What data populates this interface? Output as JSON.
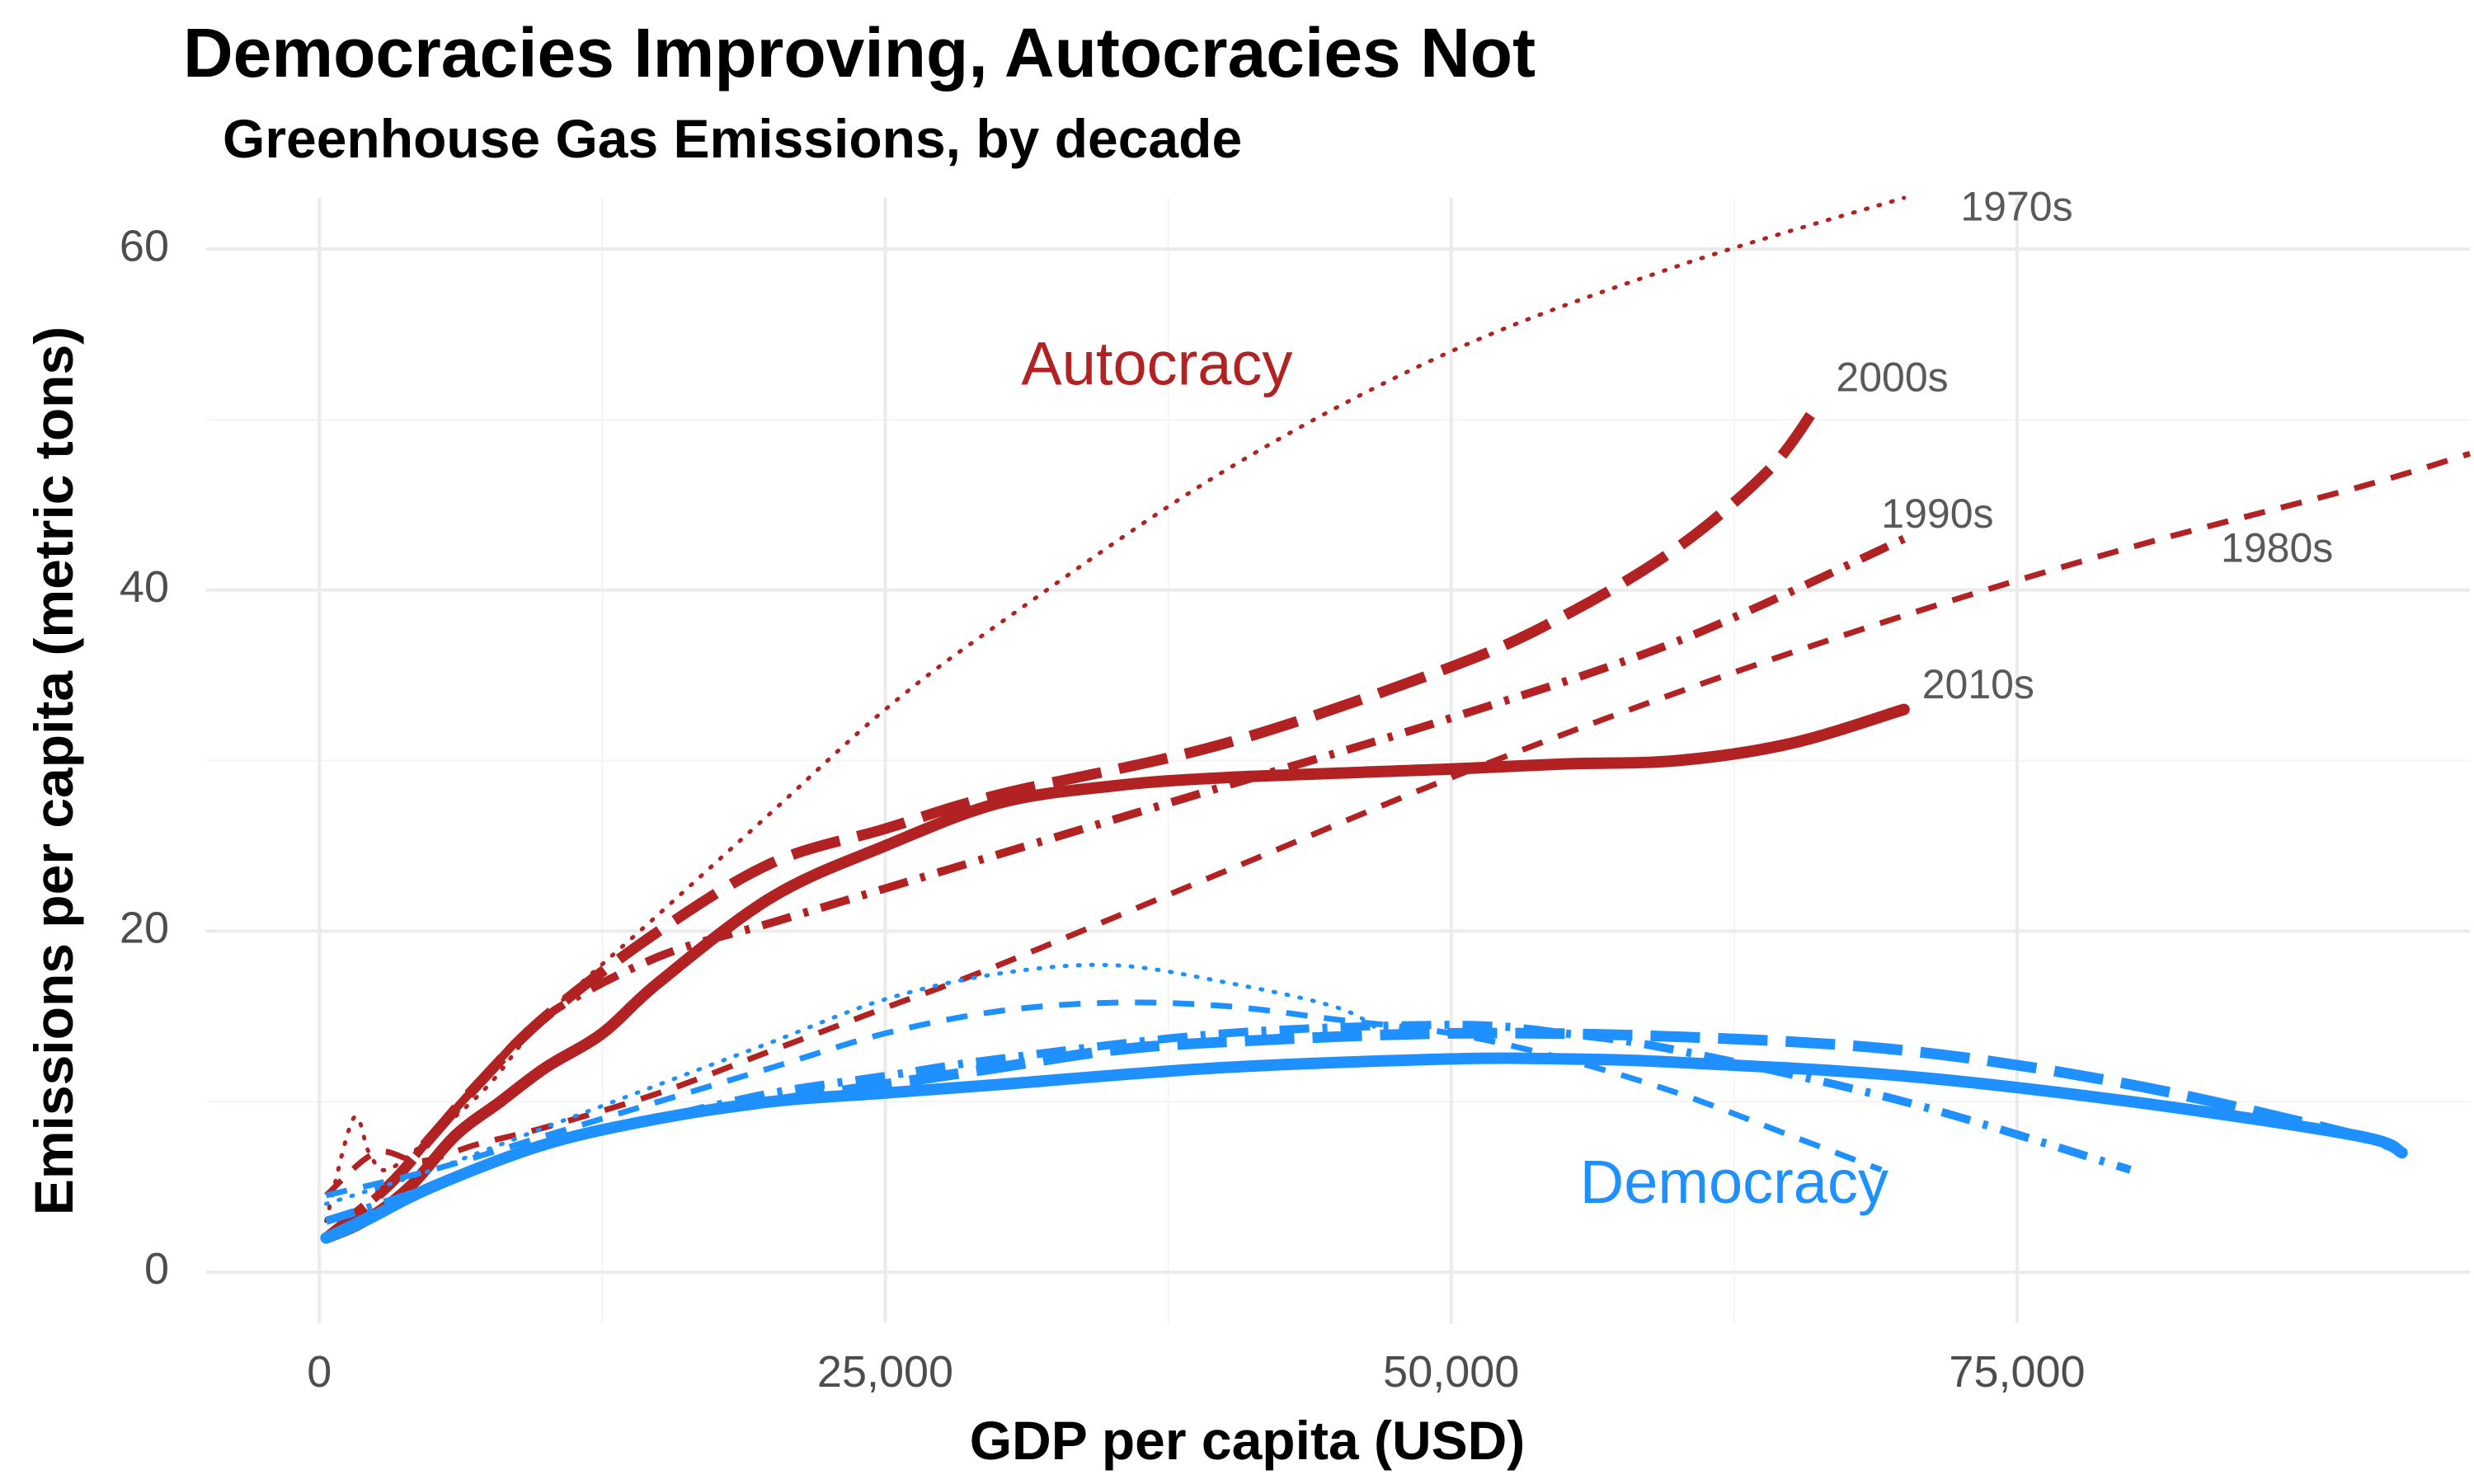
{
  "chart_data": {
    "type": "line",
    "title": "Democracies Improving, Autocracies Not",
    "subtitle": "Greenhouse Gas Emissions, by decade",
    "xlabel": "GDP per capita (USD)",
    "ylabel": "Emissions per capita (metric tons)",
    "xlim": [
      -5000,
      95000
    ],
    "ylim": [
      -3,
      63
    ],
    "x_ticks": [
      0,
      25000,
      50000,
      75000
    ],
    "x_tick_labels": [
      "0",
      "25,000",
      "50,000",
      "75,000"
    ],
    "y_ticks": [
      0,
      20,
      40,
      60
    ],
    "y_tick_labels": [
      "0",
      "20",
      "40",
      "60"
    ],
    "grid": true,
    "colors": {
      "autocracy": "#b22222",
      "democracy": "#1e90ff",
      "decade_label": "#595959",
      "grid": "#ebebeb",
      "tick_text": "#4d4d4d"
    },
    "group_labels": [
      {
        "text": "Autocracy",
        "group": "autocracy",
        "x": 37000,
        "y": 53
      },
      {
        "text": "Democracy",
        "group": "democracy",
        "x": 62500,
        "y": 5
      }
    ],
    "series": [
      {
        "name": "1970s",
        "group": "autocracy",
        "dash": "dotted",
        "x": [
          300,
          1500,
          2200,
          3000,
          5000,
          7500,
          10000,
          15000,
          20000,
          25000,
          30000,
          40000,
          50000,
          60000,
          70000
        ],
        "y": [
          3,
          9,
          7,
          6,
          8,
          11,
          15,
          21,
          27,
          33,
          38,
          47,
          54,
          59,
          63
        ]
      },
      {
        "name": "1980s",
        "group": "autocracy",
        "dash": "short-dash",
        "x": [
          300,
          2500,
          4500,
          7000,
          10000,
          15000,
          20000,
          25000,
          30000,
          40000,
          50000,
          60000,
          70000,
          80000,
          90000,
          95000
        ],
        "y": [
          4.5,
          7,
          6.5,
          7.5,
          8.5,
          10.5,
          13,
          15.5,
          18,
          23.5,
          29,
          34,
          38.5,
          42.5,
          46,
          48
        ]
      },
      {
        "name": "1990s",
        "group": "autocracy",
        "dash": "dash-dot",
        "x": [
          300,
          3000,
          5000,
          7000,
          10000,
          15000,
          20000,
          25000,
          30000,
          40000,
          50000,
          60000,
          70000
        ],
        "y": [
          2,
          5,
          8,
          11,
          15,
          18.5,
          20.5,
          22.5,
          24.5,
          28.5,
          32.5,
          37,
          43
        ]
      },
      {
        "name": "2000s",
        "group": "autocracy",
        "dash": "long-dash",
        "x": [
          300,
          3000,
          5000,
          7000,
          10000,
          15000,
          20000,
          25000,
          30000,
          40000,
          50000,
          55000,
          60000,
          64000,
          66000
        ],
        "y": [
          2,
          5,
          8,
          11,
          15,
          20,
          24,
          26,
          28,
          31,
          35.5,
          38.5,
          42.5,
          47,
          50.5
        ]
      },
      {
        "name": "2010s",
        "group": "autocracy",
        "dash": "solid",
        "x": [
          300,
          2000,
          4000,
          6000,
          8000,
          10000,
          12500,
          15000,
          20000,
          25000,
          30000,
          35000,
          40000,
          50000,
          55000,
          60000,
          65000,
          70000
        ],
        "y": [
          2,
          3,
          5,
          8,
          10,
          12,
          14,
          17,
          22,
          25,
          27.5,
          28.5,
          29,
          29.5,
          29.8,
          30,
          31,
          33
        ]
      },
      {
        "name": "",
        "group": "democracy",
        "dash": "dotted",
        "x": [
          300,
          5000,
          10000,
          15000,
          20000,
          25000,
          30000,
          35000,
          40000,
          45000,
          47000
        ],
        "y": [
          4,
          6,
          8.5,
          11,
          13.5,
          16,
          17.5,
          18,
          17,
          15.5,
          14
        ]
      },
      {
        "name": "",
        "group": "democracy",
        "dash": "short-dash",
        "x": [
          300,
          5000,
          10000,
          15000,
          20000,
          25000,
          30000,
          35000,
          40000,
          45000,
          50000,
          55000,
          60000,
          65000,
          69000
        ],
        "y": [
          4.5,
          6,
          8,
          10,
          12,
          14,
          15.3,
          15.8,
          15.6,
          14.8,
          14,
          12.5,
          10.5,
          8,
          6
        ]
      },
      {
        "name": "",
        "group": "democracy",
        "dash": "dash-dot",
        "x": [
          300,
          5000,
          10000,
          15000,
          20000,
          25000,
          30000,
          40000,
          50000,
          55000,
          60000,
          70000,
          80000
        ],
        "y": [
          3,
          5,
          7.5,
          9,
          10.5,
          11.5,
          12.5,
          14,
          14.5,
          14,
          13,
          10,
          6
        ]
      },
      {
        "name": "",
        "group": "democracy",
        "dash": "long-dash",
        "x": [
          300,
          5000,
          10000,
          15000,
          20000,
          25000,
          30000,
          35000,
          40000,
          50000,
          60000,
          70000,
          80000,
          90000,
          92000
        ],
        "y": [
          2,
          5,
          7.5,
          9,
          10,
          11,
          12,
          13,
          13.5,
          14,
          13.8,
          13,
          11,
          8,
          7
        ]
      },
      {
        "name": "",
        "group": "democracy",
        "dash": "solid",
        "x": [
          300,
          2000,
          5000,
          10000,
          15000,
          20000,
          25000,
          30000,
          40000,
          50000,
          55000,
          60000,
          70000,
          80000,
          90000,
          92000
        ],
        "y": [
          2,
          3,
          5,
          7.5,
          9,
          10,
          10.5,
          11,
          12,
          12.5,
          12.5,
          12.3,
          11.5,
          10,
          8,
          7
        ]
      }
    ],
    "series_labels": [
      {
        "text": "1970s",
        "x": 72500,
        "y": 62.3
      },
      {
        "text": "2000s",
        "x": 67000,
        "y": 52.3
      },
      {
        "text": "1990s",
        "x": 69000,
        "y": 44.3
      },
      {
        "text": "1980s",
        "x": 84000,
        "y": 42.3
      },
      {
        "text": "2010s",
        "x": 70800,
        "y": 34.3
      }
    ]
  }
}
